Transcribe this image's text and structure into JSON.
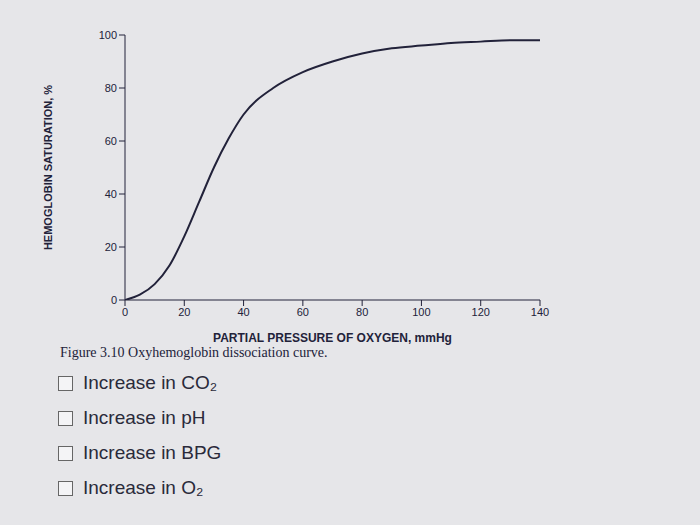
{
  "chart_data": {
    "type": "line",
    "x_label": "PARTIAL PRESSURE OF OXYGEN, mmHg",
    "y_label": "HEMOGLOBIN SATURATION, %",
    "caption": "Figure 3.10 Oxyhemoglobin dissociation curve.",
    "x": [
      0,
      5,
      10,
      15,
      20,
      25,
      30,
      35,
      40,
      50,
      60,
      70,
      80,
      90,
      100,
      110,
      120,
      130,
      140
    ],
    "values": [
      0,
      2,
      6,
      13,
      24,
      37,
      50,
      61,
      70,
      80,
      86,
      90,
      93,
      95,
      96,
      97,
      97.5,
      98,
      98
    ],
    "color": "#22223a",
    "xlim": [
      0,
      140
    ],
    "xticks": [
      0,
      20,
      40,
      60,
      80,
      100,
      120,
      140
    ],
    "ylim": [
      0,
      100
    ],
    "yticks": [
      0,
      20,
      40,
      60,
      80,
      100
    ],
    "grid": false
  },
  "options": [
    "Increase in CO₂",
    "Increase in pH",
    "Increase in BPG",
    "Increase in O₂"
  ]
}
